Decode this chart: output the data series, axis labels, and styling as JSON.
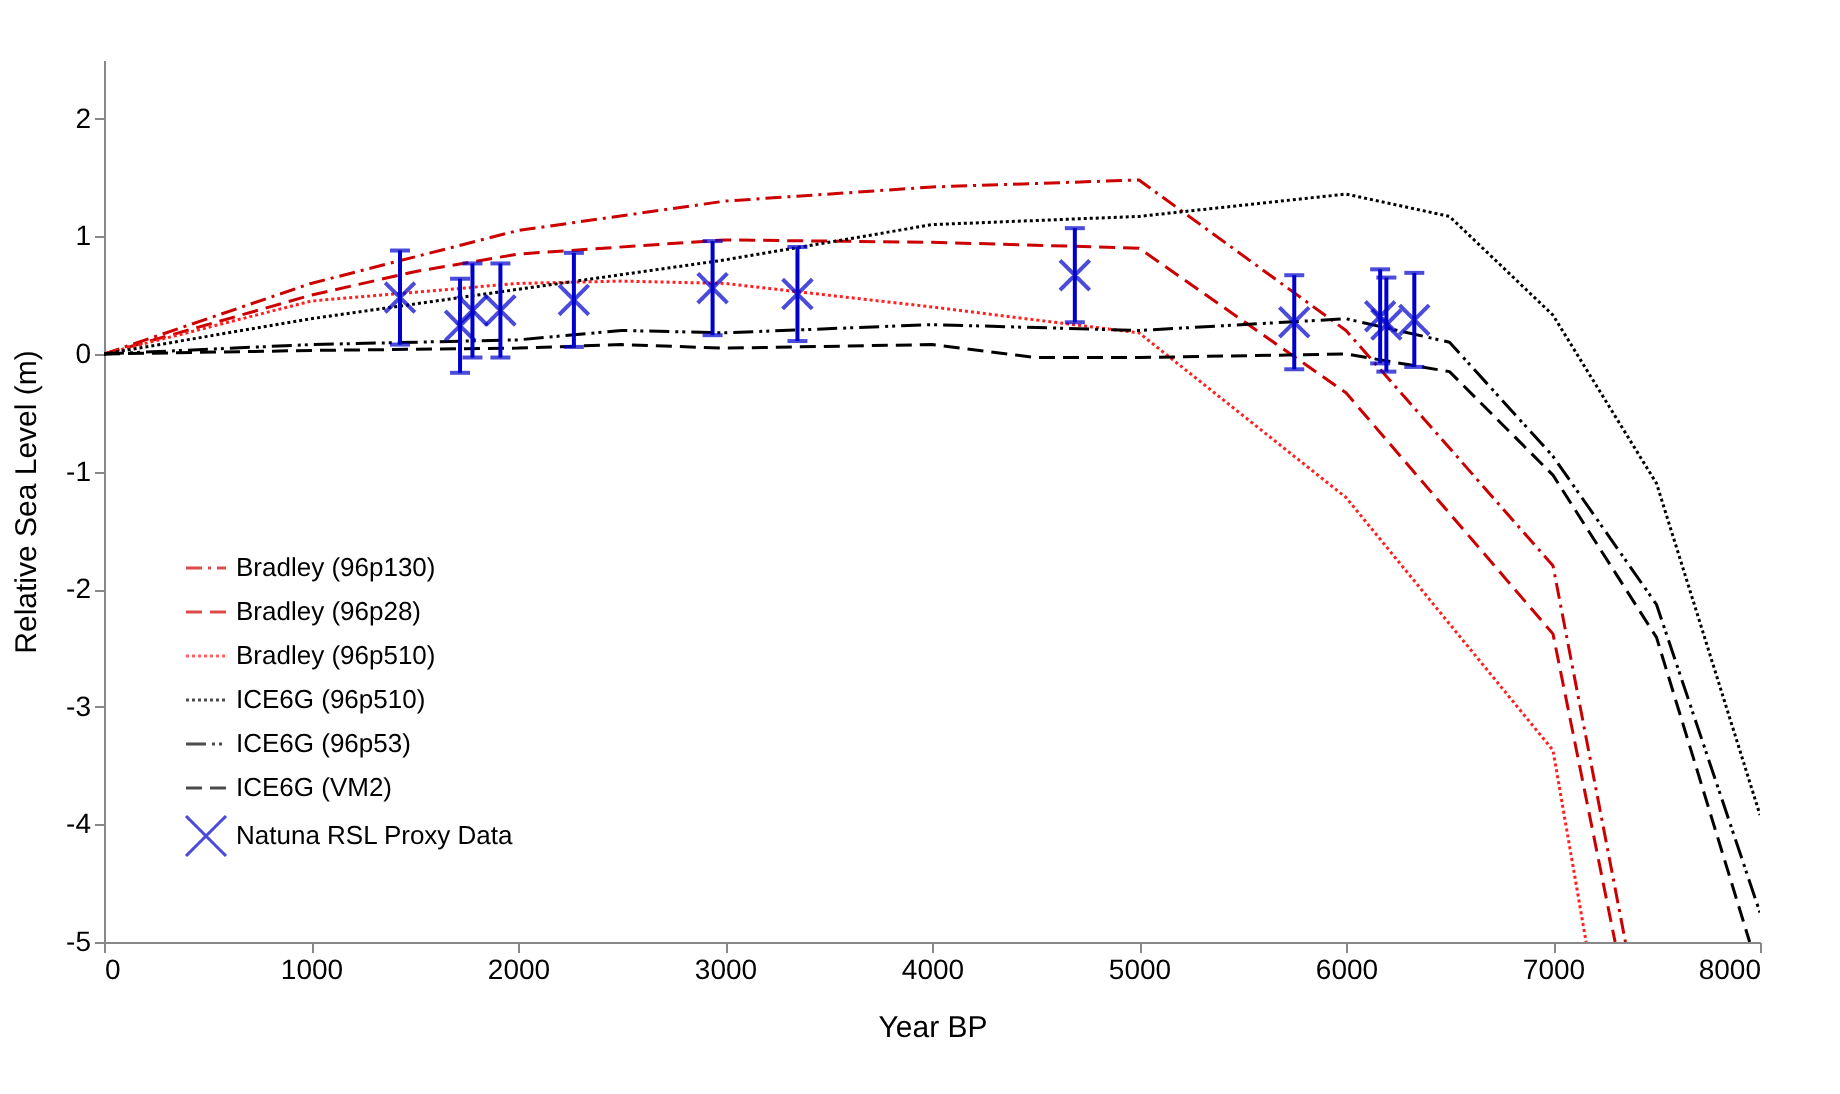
{
  "chart_data": {
    "type": "line",
    "xlabel": "Year BP",
    "ylabel": "Relative Sea Level (m)",
    "xlim": [
      0,
      8000
    ],
    "ylim": [
      -5,
      2.5
    ],
    "xticks": [
      0,
      1000,
      2000,
      3000,
      4000,
      5000,
      6000,
      7000,
      8000
    ],
    "yticks": [
      -5,
      -4,
      -3,
      -2,
      -1,
      0,
      1,
      2
    ],
    "grid": false,
    "legend": "bottom left",
    "series": [
      {
        "name": "Bradley (96p130)",
        "type": "line",
        "color": "#cc0000",
        "line_style": "dashdot",
        "x": [
          0,
          1000,
          2000,
          3000,
          4000,
          5000,
          6000,
          7000,
          7350
        ],
        "values": [
          0,
          0.6,
          1.05,
          1.3,
          1.42,
          1.48,
          0.2,
          -1.8,
          -5
        ]
      },
      {
        "name": "Bradley (96p28)",
        "type": "line",
        "color": "#cc0000",
        "line_style": "dashed",
        "x": [
          0,
          1000,
          1500,
          2000,
          3000,
          4000,
          5000,
          6000,
          7000,
          7300
        ],
        "values": [
          0,
          0.5,
          0.7,
          0.85,
          0.97,
          0.95,
          0.9,
          -0.33,
          -2.38,
          -5
        ]
      },
      {
        "name": "Bradley (96p510)",
        "type": "line",
        "color": "#ff2020",
        "line_style": "dotted",
        "x": [
          0,
          1000,
          2000,
          2500,
          3000,
          4000,
          5000,
          6000,
          7000,
          7160
        ],
        "values": [
          0,
          0.45,
          0.6,
          0.62,
          0.6,
          0.4,
          0.18,
          -1.22,
          -3.37,
          -5
        ]
      },
      {
        "name": "ICE6G (96p510)",
        "type": "line",
        "color": "#000000",
        "line_style": "dotted",
        "x": [
          0,
          1000,
          2000,
          3000,
          4000,
          5000,
          6000,
          6500,
          7000,
          7500,
          8000
        ],
        "values": [
          0,
          0.3,
          0.55,
          0.8,
          1.1,
          1.17,
          1.36,
          1.17,
          0.33,
          -1.1,
          -3.92
        ]
      },
      {
        "name": "ICE6G (96p53)",
        "type": "line",
        "color": "#000000",
        "line_style": "dashdotdot",
        "x": [
          0,
          1000,
          2000,
          2500,
          3000,
          4000,
          5000,
          6000,
          6500,
          7000,
          7500,
          8000
        ],
        "values": [
          0,
          0.08,
          0.12,
          0.2,
          0.18,
          0.25,
          0.2,
          0.3,
          0.1,
          -0.87,
          -2.13,
          -4.75
        ]
      },
      {
        "name": "ICE6G (VM2)",
        "type": "line",
        "color": "#000000",
        "line_style": "dashed",
        "x": [
          0,
          1000,
          2000,
          2500,
          3000,
          4000,
          4500,
          5000,
          6000,
          6500,
          7000,
          7500,
          7950
        ],
        "values": [
          0,
          0.03,
          0.05,
          0.08,
          0.05,
          0.08,
          -0.03,
          -0.03,
          0,
          -0.15,
          -1.03,
          -2.41,
          -5
        ]
      },
      {
        "name": "Natuna RSL Proxy Data",
        "type": "scatter",
        "color": "#0000cc",
        "marker": "cross",
        "x": [
          1430,
          1720,
          1780,
          1915,
          2270,
          2940,
          3350,
          4690,
          5750,
          6165,
          6195,
          6330
        ],
        "values": [
          0.48,
          0.24,
          0.37,
          0.37,
          0.46,
          0.56,
          0.51,
          0.67,
          0.27,
          0.32,
          0.25,
          0.29
        ],
        "errors": [
          0.4,
          0.4,
          0.4,
          0.4,
          0.4,
          0.4,
          0.4,
          0.4,
          0.4,
          0.4,
          0.4,
          0.4
        ]
      }
    ]
  }
}
